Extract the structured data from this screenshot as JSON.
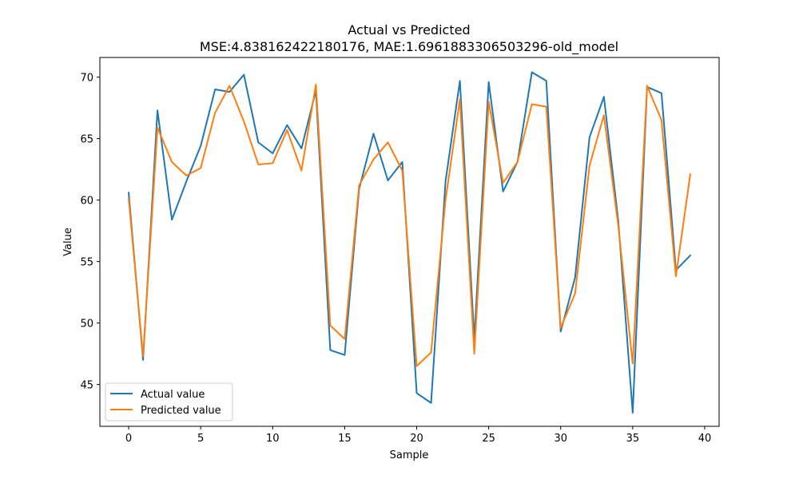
{
  "chart_data": {
    "type": "line",
    "title": "Actual vs Predicted",
    "subtitle": "MSE:4.838162422180176, MAE:1.6961883306503296-old_model",
    "xlabel": "Sample",
    "ylabel": "Value",
    "xlim": [
      -2,
      41
    ],
    "ylim": [
      41.6,
      71.6
    ],
    "xticks": [
      0,
      5,
      10,
      15,
      20,
      25,
      30,
      35,
      40
    ],
    "yticks": [
      45,
      50,
      55,
      60,
      65,
      70
    ],
    "grid": false,
    "legend_position": "lower-left",
    "x": [
      0,
      1,
      2,
      3,
      4,
      5,
      6,
      7,
      8,
      9,
      10,
      11,
      12,
      13,
      14,
      15,
      16,
      17,
      18,
      19,
      20,
      21,
      22,
      23,
      24,
      25,
      26,
      27,
      28,
      29,
      30,
      31,
      32,
      33,
      34,
      35,
      36,
      37,
      38,
      39
    ],
    "series": [
      {
        "name": "Actual value",
        "color": "#1f77b4",
        "values": [
          60.6,
          47.0,
          67.3,
          58.4,
          61.5,
          64.4,
          69.0,
          68.8,
          70.2,
          64.7,
          63.8,
          66.1,
          64.2,
          68.9,
          47.8,
          47.4,
          60.9,
          65.4,
          61.6,
          63.1,
          44.3,
          43.5,
          61.5,
          69.7,
          48.7,
          69.6,
          60.7,
          63.1,
          70.4,
          69.7,
          49.3,
          53.7,
          65.1,
          68.4,
          58.3,
          42.7,
          69.2,
          68.7,
          54.3,
          55.5
        ]
      },
      {
        "name": "Predicted value",
        "color": "#ff7f0e",
        "values": [
          60.1,
          47.3,
          65.9,
          63.1,
          62.0,
          62.6,
          67.1,
          69.3,
          66.4,
          62.9,
          63.0,
          65.7,
          62.4,
          69.4,
          49.8,
          48.7,
          61.2,
          63.3,
          64.7,
          62.4,
          46.5,
          47.6,
          60.0,
          68.2,
          47.5,
          68.0,
          61.4,
          63.1,
          67.8,
          67.6,
          49.6,
          52.4,
          62.8,
          66.9,
          57.9,
          46.7,
          69.3,
          66.5,
          53.8,
          62.1
        ]
      }
    ]
  }
}
